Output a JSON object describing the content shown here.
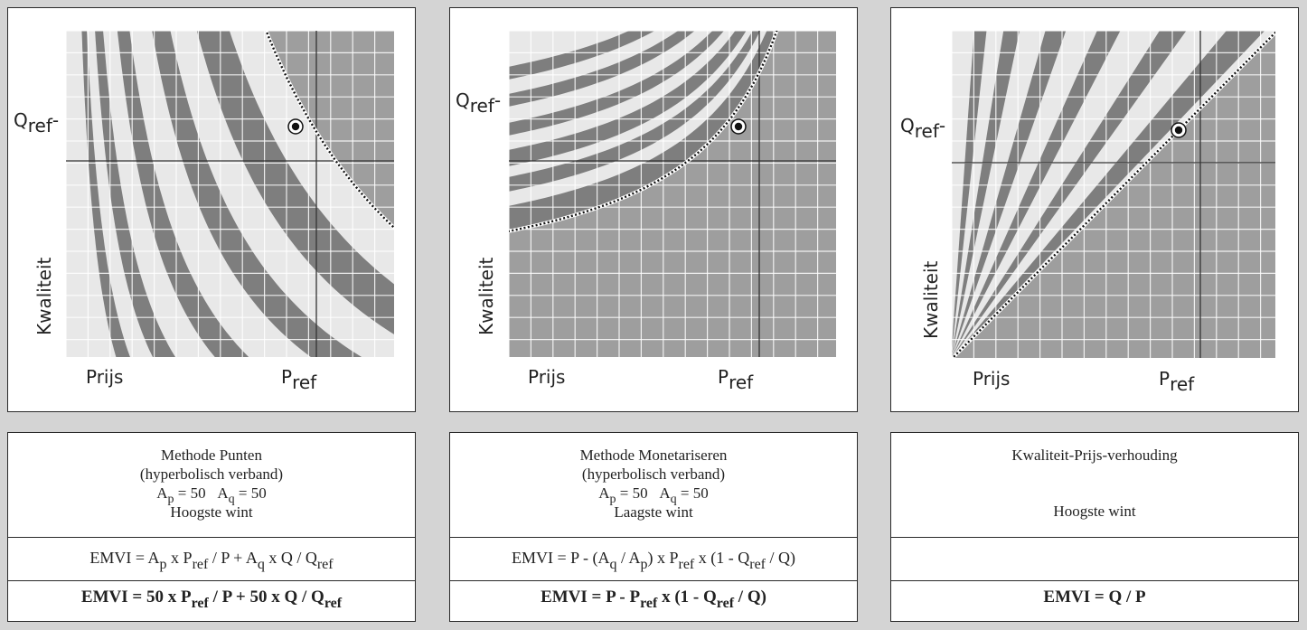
{
  "colors": {
    "light": "#e8e8e8",
    "dark": "#9e9e9e",
    "band": "#7e7e7e",
    "grid": "#ffffff",
    "axis": "#333333"
  },
  "panels": [
    {
      "y_label": "Kwaliteit",
      "q_ref": "Q",
      "q_ref_sub": "ref",
      "x_label": "Prijs",
      "p_ref": "P",
      "p_ref_sub": "ref",
      "title": "Methode Punten",
      "subtitle": "(hyperbolisch verband)",
      "weights": {
        "ap": "A",
        "ap_sub": "p",
        "ap_val": "= 50",
        "aq": "A",
        "aq_sub": "q",
        "aq_val": "= 50"
      },
      "winner": "Hoogste wint",
      "formula": {
        "a": "EMVI = A",
        "a_sub": "p",
        "b": " x P",
        "b_sub": "ref",
        "c": " / P + A",
        "c_sub": "q",
        "d": " x Q / Q",
        "d_sub": "ref",
        "e": ""
      },
      "formula_bold": {
        "a": "EMVI = 50 x P",
        "a_sub": "ref",
        "b": " / P + 50 x Q / Q",
        "b_sub": "ref",
        "c": ""
      }
    },
    {
      "y_label": "Kwaliteit",
      "q_ref": "Q",
      "q_ref_sub": "ref",
      "x_label": "Prijs",
      "p_ref": "P",
      "p_ref_sub": "ref",
      "title": "Methode Monetariseren",
      "subtitle": "(hyperbolisch verband)",
      "weights": {
        "ap": "A",
        "ap_sub": "p",
        "ap_val": "= 50",
        "aq": "A",
        "aq_sub": "q",
        "aq_val": "= 50"
      },
      "winner": "Laagste wint",
      "formula": {
        "a": "EMVI = P - (A",
        "a_sub": "q",
        "b": " / A",
        "b_sub": "p",
        "c": ") x P",
        "c_sub": "ref",
        "d": " x (1 - Q",
        "d_sub": "ref",
        "e": " / Q)"
      },
      "formula_bold": {
        "a": "EMVI = P - P",
        "a_sub": "ref",
        "b": " x (1 - Q",
        "b_sub": "ref",
        "c": " / Q)"
      }
    },
    {
      "y_label": "Kwaliteit",
      "q_ref": "Q",
      "q_ref_sub": "ref",
      "x_label": "Prijs",
      "p_ref": "P",
      "p_ref_sub": "ref",
      "title": "Kwaliteit-Prijs-verhouding",
      "winner": "Hoogste wint",
      "formula_bold": {
        "a": "EMVI = Q / P"
      }
    }
  ]
}
